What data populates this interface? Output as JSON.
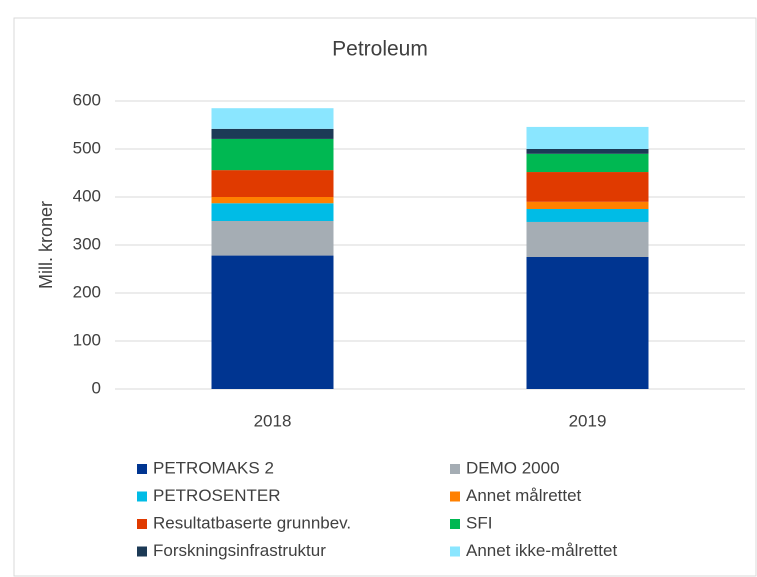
{
  "chart_data": {
    "type": "stacked_bar",
    "title": "Petroleum",
    "y_label": "Mill. kroner",
    "categories": [
      "2018",
      "2019"
    ],
    "series": [
      {
        "name": "PETROMAKS 2",
        "color": "#003591",
        "values": [
          278,
          275
        ]
      },
      {
        "name": "DEMO 2000",
        "color": "#a5adb4",
        "values": [
          72,
          73
        ]
      },
      {
        "name": "PETROSENTER",
        "color": "#00bce6",
        "values": [
          37,
          27
        ]
      },
      {
        "name": "Annet målrettet",
        "color": "#ff8000",
        "values": [
          13,
          15
        ]
      },
      {
        "name": "Resultatbaserte grunnbev.",
        "color": "#e03a00",
        "values": [
          56,
          62
        ]
      },
      {
        "name": "SFI",
        "color": "#00b852",
        "values": [
          65,
          38
        ]
      },
      {
        "name": "Forskningsinfrastruktur",
        "color": "#1c3a56",
        "values": [
          21,
          10
        ]
      },
      {
        "name": "Annet ikke-målrettet",
        "color": "#8ae6ff",
        "values": [
          43,
          46
        ]
      }
    ],
    "ylim": [
      0,
      600
    ],
    "yticks": [
      0,
      100,
      200,
      300,
      400,
      500,
      600
    ],
    "grid": true
  }
}
